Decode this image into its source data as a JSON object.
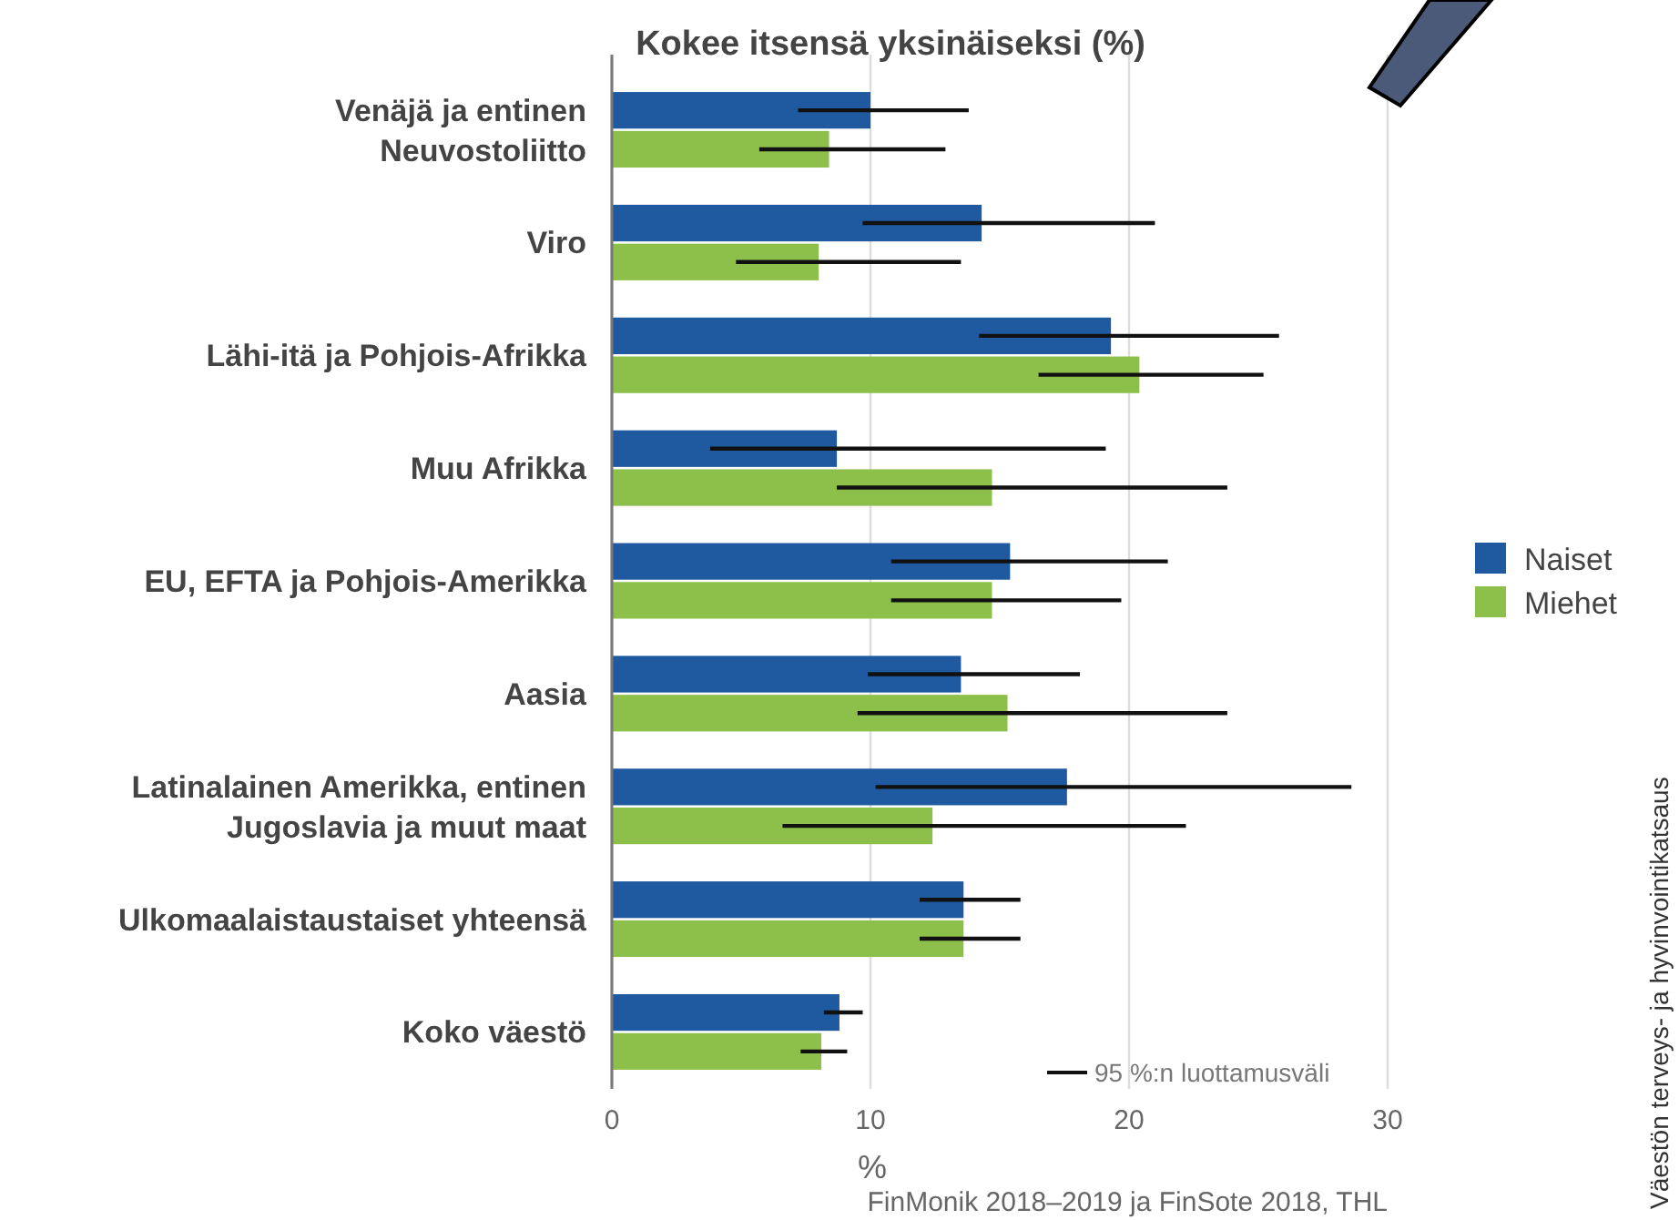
{
  "chart_data": {
    "type": "bar",
    "orientation": "horizontal",
    "title": "Kokee itsensä yksinäiseksi (%)",
    "xlabel": "%",
    "categories": [
      "Venäjä ja entinen Neuvostoliitto",
      "Viro",
      "Lähi-itä ja Pohjois-Afrikka",
      "Muu Afrikka",
      "EU, EFTA ja Pohjois-Amerikka",
      "Aasia",
      "Latinalainen Amerikka, entinen Jugoslavia ja muut maat",
      "Ulkomaalaistaustaiset yhteensä",
      "Koko väestö"
    ],
    "series": [
      {
        "name": "Naiset",
        "color": "#1f5aa0",
        "values": [
          10.0,
          14.3,
          19.3,
          8.7,
          15.4,
          13.5,
          17.6,
          13.6,
          8.8
        ],
        "errors": [
          [
            7.2,
            13.8
          ],
          [
            9.7,
            21.0
          ],
          [
            14.2,
            25.8
          ],
          [
            3.8,
            19.1
          ],
          [
            10.8,
            21.5
          ],
          [
            9.9,
            18.1
          ],
          [
            10.2,
            28.6
          ],
          [
            11.9,
            15.8
          ],
          [
            8.2,
            9.7
          ]
        ]
      },
      {
        "name": "Miehet",
        "color": "#8dc04a",
        "values": [
          8.4,
          8.0,
          20.4,
          14.7,
          14.7,
          15.3,
          12.4,
          13.6,
          8.1
        ],
        "errors": [
          [
            5.7,
            12.9
          ],
          [
            4.8,
            13.5
          ],
          [
            16.5,
            25.2
          ],
          [
            8.7,
            23.8
          ],
          [
            10.8,
            19.7
          ],
          [
            9.5,
            23.8
          ],
          [
            6.6,
            22.2
          ],
          [
            11.9,
            15.8
          ],
          [
            7.3,
            9.1
          ]
        ]
      }
    ],
    "xlim": [
      0,
      30
    ],
    "xticks": [
      0,
      10,
      20,
      30
    ],
    "grid": "x",
    "legend": "right",
    "annotations": [
      "95 %:n luottamusväli",
      "FinMonik 2018–2019 ja FinSote 2018, THL",
      "Väestön terveys- ja hyvinvointikatsaus"
    ]
  }
}
